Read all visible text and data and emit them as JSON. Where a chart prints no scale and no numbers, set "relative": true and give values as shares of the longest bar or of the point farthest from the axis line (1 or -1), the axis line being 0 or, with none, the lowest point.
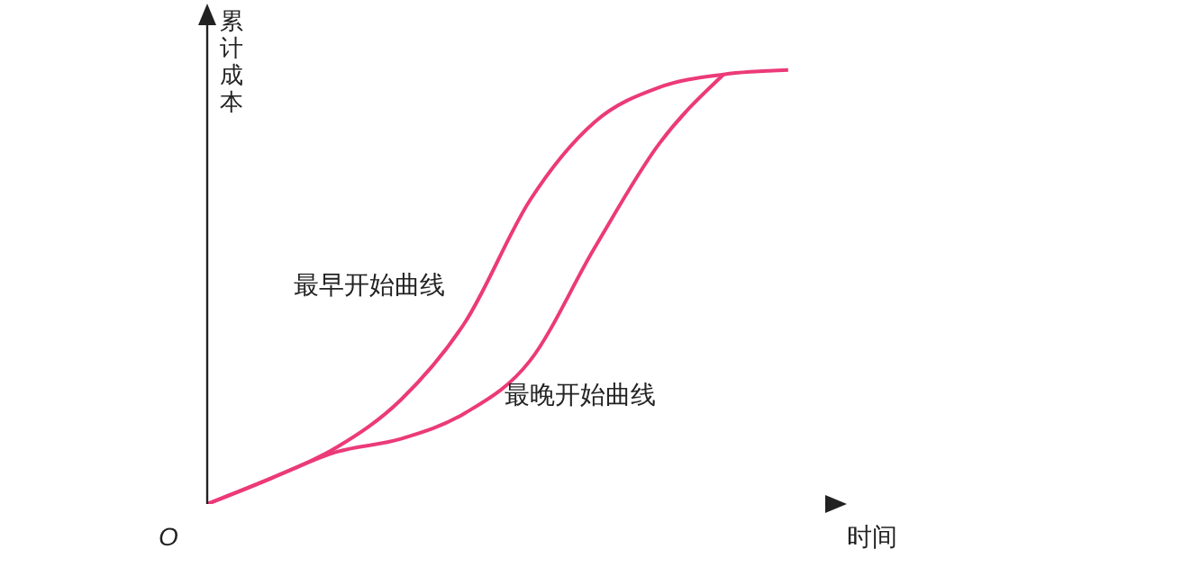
{
  "chart_data": {
    "type": "line",
    "relative": true,
    "ylabel": "累计成本",
    "xlabel": "时间",
    "annotations": [
      "O"
    ],
    "legend": false,
    "grid": false,
    "marker": "none",
    "line_style": "solid",
    "categories": [
      null,
      null,
      null,
      null,
      null,
      null,
      null,
      null,
      null,
      null
    ],
    "series": [
      {
        "name": "最早开始曲线",
        "color": "#ec3a78",
        "values": [
          0,
          0.06,
          0.13,
          0.24,
          0.42,
          0.7,
          0.88,
          0.96,
          0.99,
          1
        ]
      },
      {
        "name": "最晚开始曲线",
        "color": "#ec3a78",
        "values": [
          0,
          0.06,
          0.12,
          0.15,
          0.21,
          0.33,
          0.59,
          0.83,
          0.99,
          null
        ]
      }
    ]
  }
}
